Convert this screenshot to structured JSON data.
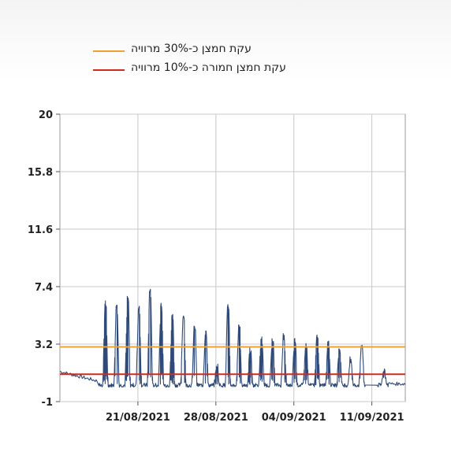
{
  "legend": {
    "items": [
      {
        "label": "עקת חמצן כ-30% מרוויה",
        "color": "#f0a030"
      },
      {
        "label": "עקת חמצן חמורה כ-10% מרוויה",
        "color": "#d42a1e"
      }
    ]
  },
  "chart_data": {
    "type": "line",
    "title": "",
    "xlabel": "",
    "ylabel": "",
    "ylim": [
      -1,
      20
    ],
    "yticks": [
      "20",
      "15.8",
      "11.6",
      "7.4",
      "3.2",
      "-1"
    ],
    "ytick_values": [
      20,
      15.8,
      11.6,
      7.4,
      3.2,
      -1
    ],
    "xlim": [
      "2021-08-14",
      "2021-09-14"
    ],
    "xticks": [
      "21/08/2021",
      "28/08/2021",
      "04/09/2021",
      "11/09/2021"
    ],
    "xtick_dates": [
      "2021-08-21",
      "2021-08-28",
      "2021-09-04",
      "2021-09-11"
    ],
    "grid": true,
    "legend_position": "top",
    "reference_lines": [
      {
        "label": "עקת חמצן כ-30% מרוויה",
        "y": 3.0,
        "color": "#f0a030"
      },
      {
        "label": "עקת חמצן חמורה כ-10% מרוויה",
        "y": 1.0,
        "color": "#d42a1e"
      }
    ],
    "series": [
      {
        "color": "#2e4a7a",
        "peaks": [
          {
            "date": "2021-08-18",
            "peak": 6.5
          },
          {
            "date": "2021-08-19",
            "peak": 6.2
          },
          {
            "date": "2021-08-20",
            "peak": 6.8
          },
          {
            "date": "2021-08-21",
            "peak": 6.0
          },
          {
            "date": "2021-08-22",
            "peak": 7.4
          },
          {
            "date": "2021-08-23",
            "peak": 6.4
          },
          {
            "date": "2021-08-24",
            "peak": 5.6
          },
          {
            "date": "2021-08-25",
            "peak": 5.3
          },
          {
            "date": "2021-08-26",
            "peak": 4.6
          },
          {
            "date": "2021-08-27",
            "peak": 4.2
          },
          {
            "date": "2021-08-28",
            "peak": 1.8
          },
          {
            "date": "2021-08-29",
            "peak": 6.3
          },
          {
            "date": "2021-08-30",
            "peak": 4.8
          },
          {
            "date": "2021-08-31",
            "peak": 3.0
          },
          {
            "date": "2021-09-01",
            "peak": 3.8
          },
          {
            "date": "2021-09-02",
            "peak": 3.6
          },
          {
            "date": "2021-09-03",
            "peak": 4.0
          },
          {
            "date": "2021-09-04",
            "peak": 3.7
          },
          {
            "date": "2021-09-05",
            "peak": 3.3
          },
          {
            "date": "2021-09-06",
            "peak": 4.0
          },
          {
            "date": "2021-09-07",
            "peak": 3.6
          },
          {
            "date": "2021-09-08",
            "peak": 3.0
          },
          {
            "date": "2021-09-09",
            "peak": 2.2
          },
          {
            "date": "2021-09-10",
            "peak": 3.3
          },
          {
            "date": "2021-09-12",
            "peak": 1.4
          }
        ],
        "baseline": 0.2,
        "start_level": 1.2
      }
    ]
  }
}
